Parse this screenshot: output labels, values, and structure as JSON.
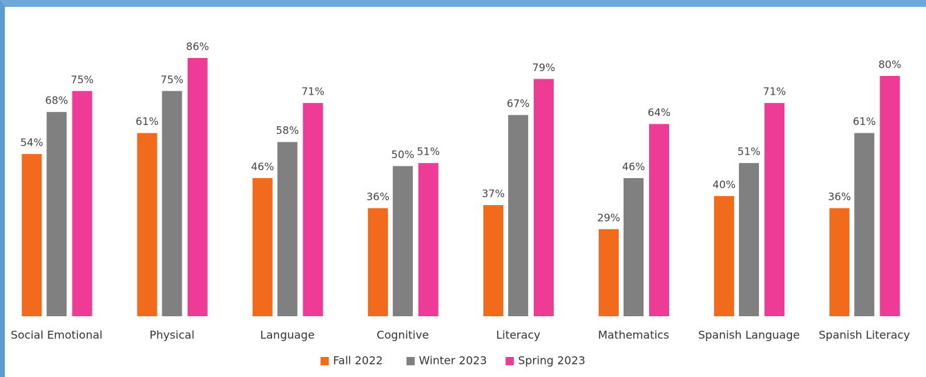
{
  "chart_data": {
    "type": "bar",
    "categories": [
      "Social Emotional",
      "Physical",
      "Language",
      "Cognitive",
      "Literacy",
      "Mathematics",
      "Spanish Language",
      "Spanish Literacy"
    ],
    "series": [
      {
        "name": "Fall 2022",
        "color": "#f26a1b",
        "values": [
          54,
          61,
          46,
          36,
          37,
          29,
          40,
          36
        ],
        "value_labels": [
          "54%",
          "61%",
          "46%",
          "36%",
          "37%",
          "29%",
          "40%",
          "36%"
        ]
      },
      {
        "name": "Winter 2023",
        "color": "#808080",
        "values": [
          68,
          75,
          58,
          50,
          67,
          46,
          51,
          61
        ],
        "value_labels": [
          "68%",
          "75%",
          "58%",
          "50%",
          "67%",
          "46%",
          "51%",
          "61%"
        ]
      },
      {
        "name": "Spring 2023",
        "color": "#ee3c96",
        "values": [
          75,
          86,
          71,
          51,
          79,
          64,
          71,
          80
        ],
        "value_labels": [
          "75%",
          "86%",
          "71%",
          "51%",
          "79%",
          "64%",
          "71%",
          "80%"
        ]
      }
    ],
    "legend": "bottom"
  }
}
